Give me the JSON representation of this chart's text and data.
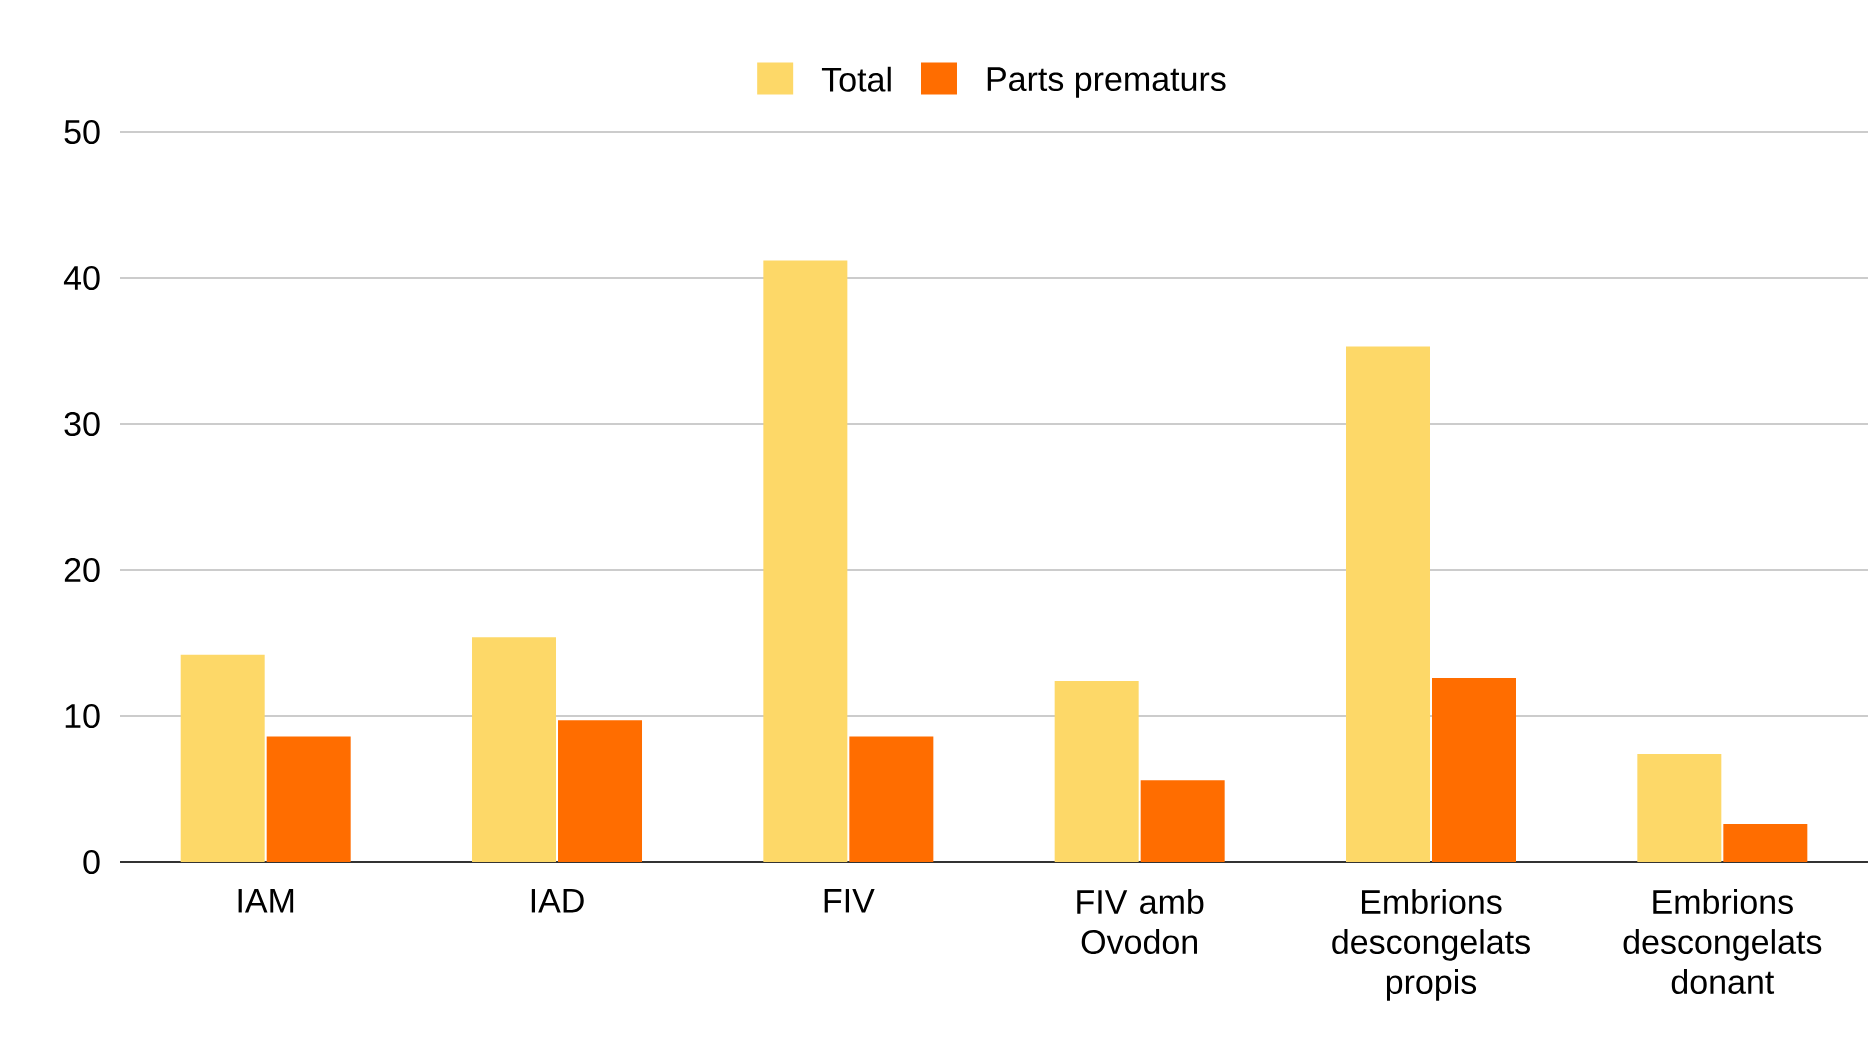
{
  "chart_data": {
    "type": "bar",
    "categories": [
      "IAM",
      "IAD",
      "FIV",
      "FIV amb Ovodon",
      "Embrions descongelats propis",
      "Embrions descongelats donant"
    ],
    "series": [
      {
        "name": "Total",
        "color": "#fdd868",
        "values": [
          14.2,
          15.4,
          41.2,
          12.4,
          35.3,
          7.4
        ]
      },
      {
        "name": "Parts prematurs",
        "color": "#ff6d00",
        "values": [
          8.6,
          9.7,
          8.6,
          5.6,
          12.6,
          2.6
        ]
      }
    ],
    "ylim": [
      0,
      50
    ],
    "yticks": [
      0,
      10,
      20,
      30,
      40,
      50
    ],
    "grid": "y",
    "legend": "top"
  }
}
